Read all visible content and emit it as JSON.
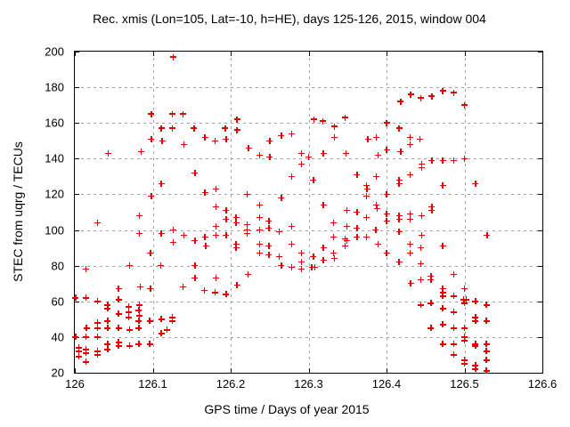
{
  "chart_data": {
    "type": "scatter",
    "title": "Rec. xmis (Lon=105, Lat=-10, h=HE), days 125-126, 2015, window 004",
    "xlabel": "GPS time / Days of year 2015",
    "ylabel": "STEC from uqrg / TECUs",
    "xlim": [
      126,
      126.6
    ],
    "ylim": [
      20,
      200
    ],
    "grid": true,
    "legend": "none",
    "marker": {
      "shape": "plus",
      "color": "#e00000"
    },
    "xticks": [
      {
        "value": 126.0,
        "label": "126"
      },
      {
        "value": 126.1,
        "label": "126.1"
      },
      {
        "value": 126.2,
        "label": "126.2"
      },
      {
        "value": 126.3,
        "label": "126.3"
      },
      {
        "value": 126.4,
        "label": "126.4"
      },
      {
        "value": 126.5,
        "label": "126.5"
      },
      {
        "value": 126.6,
        "label": "126.6"
      }
    ],
    "yticks": [
      {
        "value": 20,
        "label": "20"
      },
      {
        "value": 40,
        "label": "40"
      },
      {
        "value": 60,
        "label": "60"
      },
      {
        "value": 80,
        "label": "80"
      },
      {
        "value": 100,
        "label": "100"
      },
      {
        "value": 120,
        "label": "120"
      },
      {
        "value": 140,
        "label": "140"
      },
      {
        "value": 160,
        "label": "160"
      },
      {
        "value": 180,
        "label": "180"
      },
      {
        "value": 200,
        "label": "200"
      }
    ],
    "points": [
      [
        126.126,
        197
      ],
      [
        126.098,
        165
      ],
      [
        126.125,
        165
      ],
      [
        126.139,
        165
      ],
      [
        126.111,
        157
      ],
      [
        126.125,
        157
      ],
      [
        126.153,
        157
      ],
      [
        126.167,
        152
      ],
      [
        126.18,
        150
      ],
      [
        126.193,
        157
      ],
      [
        126.194,
        151
      ],
      [
        126.098,
        151
      ],
      [
        126.112,
        150
      ],
      [
        126.14,
        148
      ],
      [
        126.043,
        143
      ],
      [
        126.085,
        144
      ],
      [
        126.208,
        162
      ],
      [
        126.208,
        156
      ],
      [
        126.223,
        146
      ],
      [
        126.237,
        142
      ],
      [
        126.25,
        150
      ],
      [
        126.25,
        141
      ],
      [
        126.265,
        153
      ],
      [
        126.278,
        154
      ],
      [
        126.291,
        143
      ],
      [
        126.3,
        141
      ],
      [
        126.307,
        162
      ],
      [
        126.318,
        161
      ],
      [
        126.319,
        143
      ],
      [
        126.333,
        158
      ],
      [
        126.333,
        152
      ],
      [
        126.347,
        163
      ],
      [
        126.348,
        143
      ],
      [
        126.376,
        151
      ],
      [
        126.387,
        152
      ],
      [
        126.389,
        142
      ],
      [
        126.418,
        172
      ],
      [
        126.431,
        176
      ],
      [
        126.444,
        174
      ],
      [
        126.458,
        175
      ],
      [
        126.472,
        178
      ],
      [
        126.486,
        177
      ],
      [
        126.5,
        170
      ],
      [
        126.4,
        160
      ],
      [
        126.416,
        157
      ],
      [
        126.43,
        152
      ],
      [
        126.43,
        148
      ],
      [
        126.443,
        151
      ],
      [
        126.4,
        145
      ],
      [
        126.418,
        144
      ],
      [
        126.154,
        132
      ],
      [
        126.111,
        126
      ],
      [
        126.167,
        121
      ],
      [
        126.181,
        123
      ],
      [
        126.098,
        119
      ],
      [
        126.181,
        113
      ],
      [
        126.194,
        111
      ],
      [
        126.194,
        106
      ],
      [
        126.083,
        108
      ],
      [
        126.029,
        104
      ],
      [
        126.181,
        102
      ],
      [
        126.083,
        98
      ],
      [
        126.111,
        98
      ],
      [
        126.126,
        100
      ],
      [
        126.126,
        93
      ],
      [
        126.14,
        97
      ],
      [
        126.154,
        94
      ],
      [
        126.167,
        96
      ],
      [
        126.168,
        91
      ],
      [
        126.181,
        97
      ],
      [
        126.194,
        97
      ],
      [
        126.097,
        87
      ],
      [
        126.07,
        80
      ],
      [
        126.11,
        80
      ],
      [
        126.154,
        80
      ],
      [
        126.291,
        137
      ],
      [
        126.278,
        130
      ],
      [
        126.306,
        128
      ],
      [
        126.362,
        131
      ],
      [
        126.387,
        130
      ],
      [
        126.374,
        125
      ],
      [
        126.375,
        123
      ],
      [
        126.374,
        119
      ],
      [
        126.221,
        120
      ],
      [
        126.265,
        118
      ],
      [
        126.237,
        114
      ],
      [
        126.319,
        114
      ],
      [
        126.387,
        114
      ],
      [
        126.388,
        112
      ],
      [
        126.237,
        107
      ],
      [
        126.362,
        110
      ],
      [
        126.349,
        111
      ],
      [
        126.207,
        107
      ],
      [
        126.207,
        104
      ],
      [
        126.221,
        103
      ],
      [
        126.249,
        105
      ],
      [
        126.249,
        101
      ],
      [
        126.221,
        100
      ],
      [
        126.221,
        98
      ],
      [
        126.237,
        100
      ],
      [
        126.262,
        99
      ],
      [
        126.278,
        102
      ],
      [
        126.332,
        104
      ],
      [
        126.349,
        102
      ],
      [
        126.362,
        101
      ],
      [
        126.374,
        107
      ],
      [
        126.386,
        100
      ],
      [
        126.389,
        92
      ],
      [
        126.374,
        96
      ],
      [
        126.362,
        96
      ],
      [
        126.347,
        95
      ],
      [
        126.349,
        94
      ],
      [
        126.347,
        91
      ],
      [
        126.332,
        96
      ],
      [
        126.319,
        90
      ],
      [
        126.207,
        92
      ],
      [
        126.237,
        92
      ],
      [
        126.249,
        91
      ],
      [
        126.278,
        92
      ],
      [
        126.237,
        87
      ],
      [
        126.249,
        86
      ],
      [
        126.262,
        85
      ],
      [
        126.291,
        87
      ],
      [
        126.291,
        82
      ],
      [
        126.306,
        85
      ],
      [
        126.332,
        87
      ],
      [
        126.333,
        84
      ],
      [
        126.207,
        90
      ],
      [
        126.319,
        83
      ],
      [
        126.445,
        137
      ],
      [
        126.445,
        135
      ],
      [
        126.458,
        139
      ],
      [
        126.472,
        139
      ],
      [
        126.486,
        139
      ],
      [
        126.5,
        140
      ],
      [
        126.43,
        131
      ],
      [
        126.416,
        128
      ],
      [
        126.416,
        126
      ],
      [
        126.472,
        125
      ],
      [
        126.514,
        126
      ],
      [
        126.4,
        120
      ],
      [
        126.458,
        113
      ],
      [
        126.458,
        111
      ],
      [
        126.416,
        108
      ],
      [
        126.4,
        109
      ],
      [
        126.4,
        105
      ],
      [
        126.43,
        109
      ],
      [
        126.43,
        106
      ],
      [
        126.416,
        106
      ],
      [
        126.445,
        108
      ],
      [
        126.416,
        99
      ],
      [
        126.445,
        97
      ],
      [
        126.43,
        92
      ],
      [
        126.444,
        90
      ],
      [
        126.472,
        91
      ],
      [
        126.43,
        87
      ],
      [
        126.4,
        87
      ],
      [
        126.416,
        82
      ],
      [
        126.444,
        81
      ],
      [
        126.529,
        97
      ],
      [
        126.014,
        78
      ],
      [
        126.154,
        73
      ],
      [
        126.181,
        73
      ],
      [
        126.056,
        67
      ],
      [
        126.084,
        68
      ],
      [
        126.097,
        67
      ],
      [
        126.139,
        68
      ],
      [
        126.166,
        66
      ],
      [
        126.18,
        65
      ],
      [
        126.194,
        64
      ],
      [
        126.014,
        62
      ],
      [
        126.001,
        62
      ],
      [
        126.029,
        60
      ],
      [
        126.042,
        58
      ],
      [
        126.042,
        56
      ],
      [
        126.056,
        61
      ],
      [
        126.069,
        57
      ],
      [
        126.056,
        53
      ],
      [
        126.069,
        54
      ],
      [
        126.069,
        51
      ],
      [
        126.083,
        58
      ],
      [
        126.082,
        55
      ],
      [
        126.083,
        52
      ],
      [
        126.082,
        49
      ],
      [
        126.096,
        49
      ],
      [
        126.111,
        50
      ],
      [
        126.125,
        51
      ],
      [
        126.125,
        49
      ],
      [
        126.029,
        48
      ],
      [
        126.042,
        49
      ],
      [
        126.015,
        45
      ],
      [
        126.029,
        45
      ],
      [
        126.042,
        45
      ],
      [
        126.056,
        45
      ],
      [
        126.07,
        44
      ],
      [
        126.082,
        45
      ],
      [
        126.111,
        42
      ],
      [
        126.118,
        44
      ],
      [
        126.001,
        40
      ],
      [
        126.014,
        40
      ],
      [
        126.029,
        40
      ],
      [
        126.042,
        36
      ],
      [
        126.056,
        37
      ],
      [
        126.056,
        35
      ],
      [
        126.07,
        35
      ],
      [
        126.082,
        36
      ],
      [
        126.096,
        36
      ],
      [
        126.014,
        33
      ],
      [
        126.014,
        31
      ],
      [
        126.029,
        32
      ],
      [
        126.029,
        30
      ],
      [
        126.042,
        33
      ],
      [
        126.005,
        34
      ],
      [
        126.005,
        32
      ],
      [
        126.005,
        29
      ],
      [
        126.014,
        26
      ],
      [
        126.208,
        69
      ],
      [
        126.222,
        75
      ],
      [
        126.265,
        80
      ],
      [
        126.278,
        79
      ],
      [
        126.291,
        78
      ],
      [
        126.304,
        79
      ],
      [
        126.308,
        79
      ],
      [
        126.431,
        70
      ],
      [
        126.444,
        72
      ],
      [
        126.457,
        74
      ],
      [
        126.457,
        72
      ],
      [
        126.486,
        75
      ],
      [
        126.472,
        67
      ],
      [
        126.472,
        65
      ],
      [
        126.472,
        63
      ],
      [
        126.486,
        63
      ],
      [
        126.5,
        67
      ],
      [
        126.499,
        61
      ],
      [
        126.502,
        61
      ],
      [
        126.5,
        59
      ],
      [
        126.514,
        60
      ],
      [
        126.528,
        58
      ],
      [
        126.444,
        58
      ],
      [
        126.457,
        59
      ],
      [
        126.472,
        56
      ],
      [
        126.486,
        54
      ],
      [
        126.514,
        51
      ],
      [
        126.514,
        49
      ],
      [
        126.528,
        49
      ],
      [
        126.457,
        45
      ],
      [
        126.472,
        47
      ],
      [
        126.486,
        45
      ],
      [
        126.5,
        45
      ],
      [
        126.5,
        40
      ],
      [
        126.5,
        38
      ],
      [
        126.472,
        36
      ],
      [
        126.486,
        36
      ],
      [
        126.514,
        36
      ],
      [
        126.514,
        35
      ],
      [
        126.528,
        36
      ],
      [
        126.528,
        32
      ],
      [
        126.486,
        30
      ],
      [
        126.5,
        27
      ],
      [
        126.5,
        25
      ],
      [
        126.514,
        24
      ],
      [
        126.528,
        27
      ],
      [
        126.514,
        22
      ],
      [
        126.528,
        21
      ]
    ]
  }
}
